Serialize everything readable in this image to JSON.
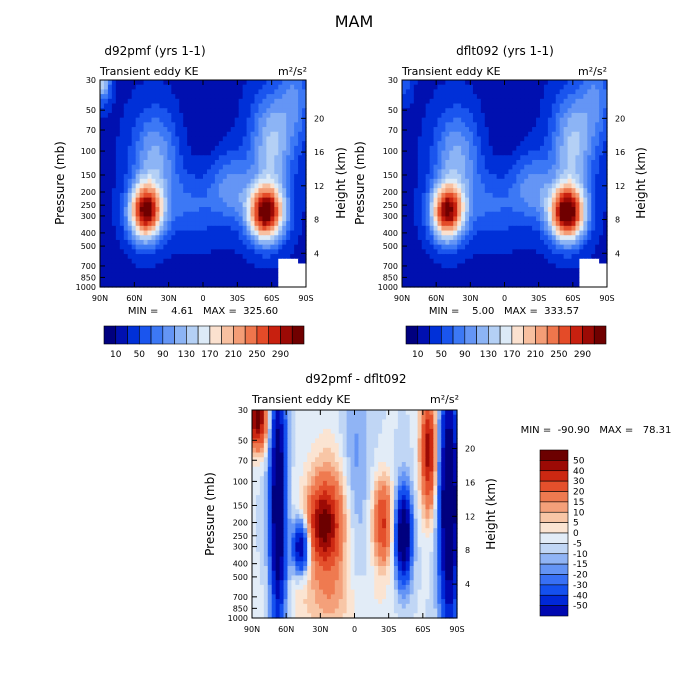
{
  "figure_title": "MAM",
  "chart_data": [
    {
      "type": "heatmap",
      "title": "d92pmf (yrs 1-1)",
      "subtitle_left": "Transient eddy KE",
      "units": "m²/s²",
      "ylabel": "Pressure (mb)",
      "ylabel_right": "Height (km)",
      "x_ticks": [
        "90N",
        "60N",
        "30N",
        "0",
        "30S",
        "60S",
        "90S"
      ],
      "y_ticks": [
        "30",
        "50",
        "70",
        "100",
        "150",
        "200",
        "250",
        "300",
        "400",
        "500",
        "700",
        "850",
        "1000"
      ],
      "y_ticks_right": [
        "4",
        "8",
        "12",
        "16",
        "20"
      ],
      "stats": "MIN =    4.61   MAX =  325.60",
      "colorbar": {
        "orientation": "horizontal",
        "labels": [
          "10",
          "50",
          "90",
          "130",
          "170",
          "210",
          "250",
          "290"
        ],
        "levels": [
          10,
          30,
          50,
          70,
          90,
          110,
          130,
          150,
          170,
          190,
          210,
          230,
          250,
          270,
          290
        ]
      },
      "features": [
        {
          "lat": 50,
          "pressure": 280,
          "value": 300
        },
        {
          "lat": -55,
          "pressure": 280,
          "value": 320
        }
      ]
    },
    {
      "type": "heatmap",
      "title": "dflt092 (yrs 1-1)",
      "subtitle_left": "Transient eddy KE",
      "units": "m²/s²",
      "ylabel": "Pressure (mb)",
      "ylabel_right": "Height (km)",
      "x_ticks": [
        "90N",
        "60N",
        "30N",
        "0",
        "30S",
        "60S",
        "90S"
      ],
      "y_ticks": [
        "30",
        "50",
        "70",
        "100",
        "150",
        "200",
        "250",
        "300",
        "400",
        "500",
        "700",
        "850",
        "1000"
      ],
      "y_ticks_right": [
        "4",
        "8",
        "12",
        "16",
        "20"
      ],
      "stats": "MIN =    5.00   MAX =  333.57",
      "colorbar": {
        "orientation": "horizontal",
        "labels": [
          "10",
          "50",
          "90",
          "130",
          "170",
          "210",
          "250",
          "290"
        ],
        "levels": [
          10,
          30,
          50,
          70,
          90,
          110,
          130,
          150,
          170,
          190,
          210,
          230,
          250,
          270,
          290
        ]
      },
      "features": [
        {
          "lat": 48,
          "pressure": 290,
          "value": 290
        },
        {
          "lat": -55,
          "pressure": 290,
          "value": 330
        }
      ]
    },
    {
      "type": "heatmap",
      "title": "d92pmf - dflt092",
      "subtitle_left": "Transient eddy KE",
      "units": "m²/s²",
      "ylabel": "Pressure (mb)",
      "ylabel_right": "Height (km)",
      "x_ticks": [
        "90N",
        "60N",
        "30N",
        "0",
        "30S",
        "60S",
        "90S"
      ],
      "y_ticks": [
        "30",
        "50",
        "70",
        "100",
        "150",
        "200",
        "250",
        "300",
        "400",
        "500",
        "700",
        "850",
        "1000"
      ],
      "y_ticks_right": [
        "4",
        "8",
        "12",
        "16",
        "20"
      ],
      "stats": "MIN =  -90.90   MAX =   78.31",
      "colorbar": {
        "orientation": "vertical",
        "labels": [
          "50",
          "40",
          "30",
          "20",
          "15",
          "10",
          "5",
          "0",
          "-5",
          "-10",
          "-15",
          "-20",
          "-30",
          "-40",
          "-50"
        ],
        "levels": [
          50,
          40,
          30,
          20,
          15,
          10,
          5,
          0,
          -5,
          -10,
          -15,
          -20,
          -30,
          -40,
          -50
        ]
      }
    }
  ],
  "colors": {
    "panel_seq": [
      "#00007f",
      "#0010b0",
      "#0030d8",
      "#1a55ee",
      "#3c78f5",
      "#6495f5",
      "#8cb4f5",
      "#b4d0f5",
      "#dceaf7",
      "#fbe1cf",
      "#f8c0a0",
      "#f49d76",
      "#ef764c",
      "#e44b28",
      "#c8200f",
      "#9c0a05",
      "#700000"
    ],
    "diff_seq": [
      "#00007f",
      "#0008b0",
      "#0028d8",
      "#1450ef",
      "#3870f5",
      "#6494f5",
      "#90b4f5",
      "#c0d6f5",
      "#e2ecf7",
      "#fbe4d2",
      "#f8c6a6",
      "#f4a07a",
      "#ef7a50",
      "#e4502c",
      "#cc2812",
      "#9c0a05",
      "#6c0000"
    ]
  }
}
